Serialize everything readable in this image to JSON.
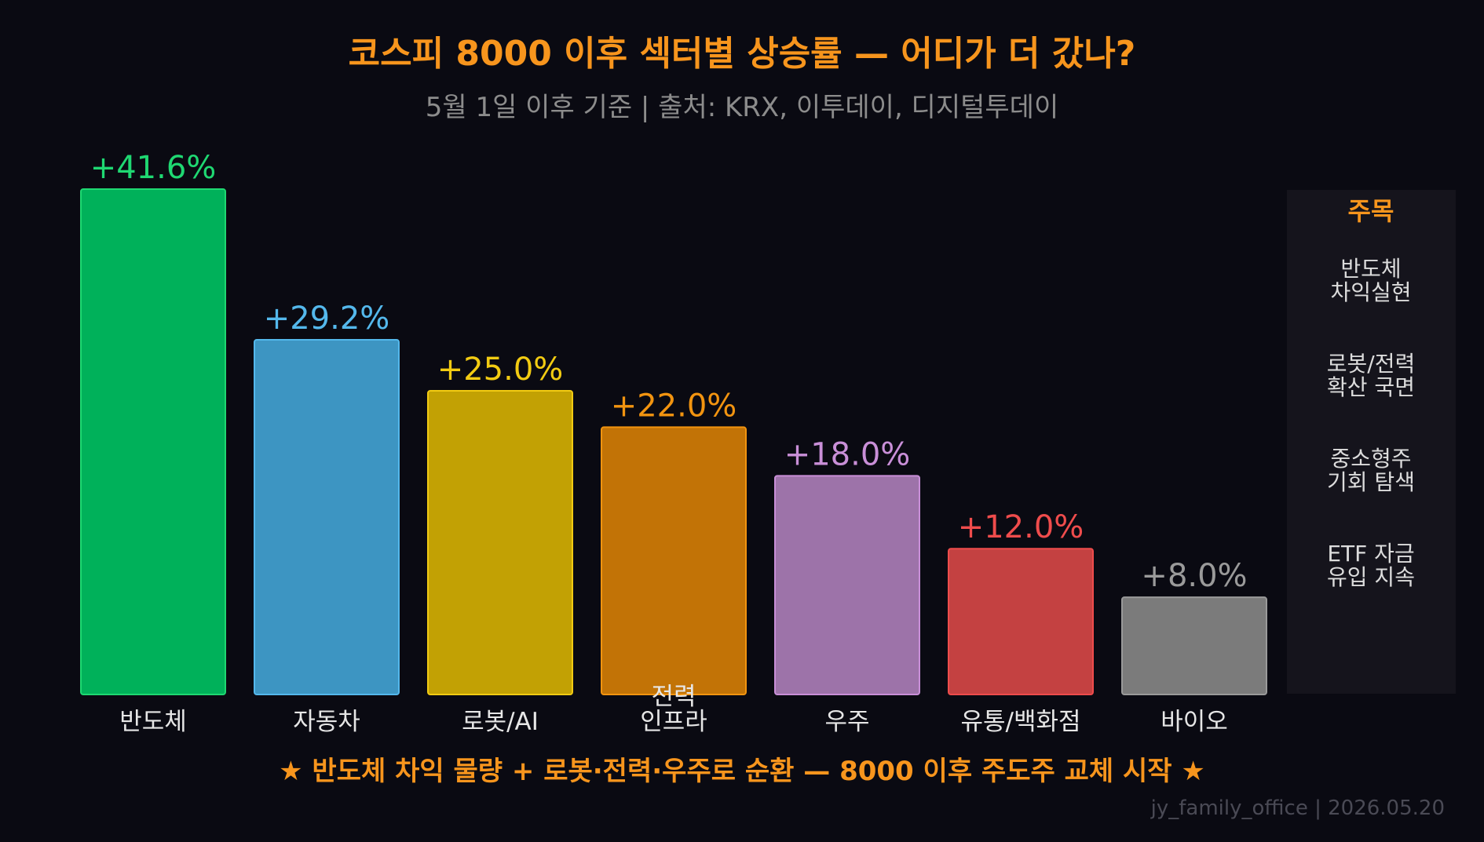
{
  "chart_data": {
    "type": "bar",
    "title": "코스피 8000 이후 섹터별 상승률 — 어디가 더 갔나?",
    "subtitle": "5월 1일 이후 기준 | 출처: KRX, 이투데이, 디지털투데이",
    "categories": [
      "반도체",
      "자동차",
      "로봇/AI",
      "전력\n인프라",
      "우주",
      "유통/백화점",
      "바이오"
    ],
    "values": [
      41.6,
      29.2,
      25.0,
      22.0,
      18.0,
      12.0,
      8.0
    ],
    "value_labels": [
      "+41.6%",
      "+29.2%",
      "+25.0%",
      "+22.0%",
      "+18.0%",
      "+12.0%",
      "+8.0%"
    ],
    "bar_colors": [
      "#00b15a",
      "#3d95c2",
      "#c2a104",
      "#c27306",
      "#9d73a9",
      "#c44141",
      "#7b7b7b"
    ],
    "label_colors": [
      "#1fd872",
      "#54b8ec",
      "#f2cb12",
      "#f29410",
      "#c98fd8",
      "#ef4c4c",
      "#9a9a9a"
    ],
    "ylim": [
      0,
      41.6
    ],
    "grid": false,
    "xlabel": "",
    "ylabel": ""
  },
  "sidebar": {
    "title": "주목",
    "items": [
      "반도체\n차익실현",
      "로봇/전력\n확산 국면",
      "중소형주\n기회 탐색",
      "ETF 자금\n유입 지속"
    ]
  },
  "footer": {
    "headline": "★ 반도체 차익 물량 + 로봇·전력·우주로 순환 — 8000 이후 주도주 교체 시작 ★",
    "credit": "jy_family_office | 2026.05.20"
  },
  "colors": {
    "background": "#0a0a12",
    "accent": "#f7951d",
    "panel": "#15141c",
    "text": "#e6e6e6",
    "muted": "#8c8c8c"
  }
}
